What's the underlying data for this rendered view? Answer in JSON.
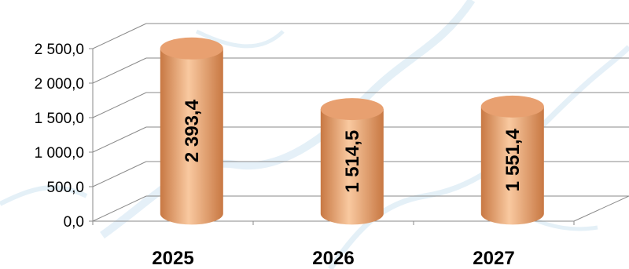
{
  "chart_data": {
    "type": "bar",
    "style": "3d-cylinder",
    "categories": [
      "2025",
      "2026",
      "2027"
    ],
    "values": [
      2393.4,
      1514.5,
      1551.4
    ],
    "data_labels": [
      "2 393,4",
      "1 514,5",
      "1 551,4"
    ],
    "y_ticks": [
      0,
      500,
      1000,
      1500,
      2000,
      2500
    ],
    "y_tick_labels": [
      "0,0",
      "500,0",
      "1 000,0",
      "1 500,0",
      "2 000,0",
      "2 500,0"
    ],
    "ylim": [
      0,
      2500
    ],
    "grid": true,
    "legend": "none",
    "colors": {
      "bar_fill_light": "#f9c9a0",
      "bar_fill_mid": "#f0a872",
      "bar_fill_dark": "#c87843",
      "bar_top": "#e8a070",
      "grid": "#8a8a8a",
      "background_map": "#cfe4f2"
    }
  }
}
